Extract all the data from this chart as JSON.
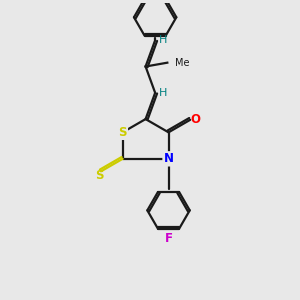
{
  "bg_color": "#e8e8e8",
  "bond_color": "#1a1a1a",
  "S_color": "#cccc00",
  "N_color": "#0000ff",
  "O_color": "#ff0000",
  "F_color": "#cc00cc",
  "H_color": "#008080",
  "line_width": 1.6,
  "figsize": [
    3.0,
    3.0
  ],
  "dpi": 100,
  "xlim": [
    0,
    10
  ],
  "ylim": [
    0,
    10
  ]
}
